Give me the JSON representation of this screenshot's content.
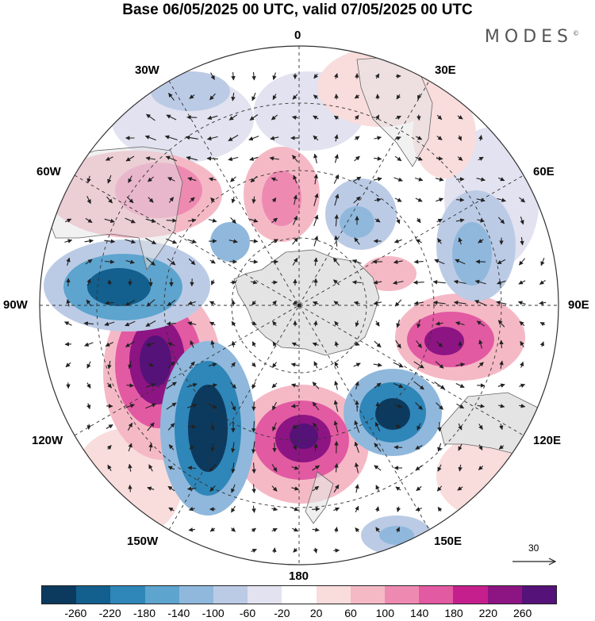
{
  "title": "Base 06/05/2025 00 UTC, valid 07/05/2025 00 UTC",
  "logo": "MODES",
  "logo_mark": "©",
  "longitude_labels": {
    "lon_0": "0",
    "lon_30e": "30E",
    "lon_60e": "60E",
    "lon_90e": "90E",
    "lon_120e": "120E",
    "lon_150e": "150E",
    "lon_180": "180",
    "lon_150w": "150W",
    "lon_120w": "120W",
    "lon_90w": "90W",
    "lon_60w": "60W",
    "lon_30w": "30W"
  },
  "reference_vector": "30",
  "colorbar": {
    "colors": [
      "#0c3a5e",
      "#135f8d",
      "#2f86b8",
      "#5da4cf",
      "#8fb8dc",
      "#bccbe5",
      "#e2e2f0",
      "#ffffff",
      "#f9dcdc",
      "#f5b9c6",
      "#ee8ab2",
      "#e25aa2",
      "#c51f8d",
      "#8d1483",
      "#551278"
    ],
    "labels": [
      "-260",
      "-220",
      "-180",
      "-140",
      "-100",
      "-60",
      "-20",
      "20",
      "60",
      "100",
      "140",
      "180",
      "220",
      "260"
    ]
  },
  "map_colors": {
    "land": "#e4e4e4",
    "coast": "#666666",
    "grid": "#333333",
    "arrow": "#222222"
  }
}
